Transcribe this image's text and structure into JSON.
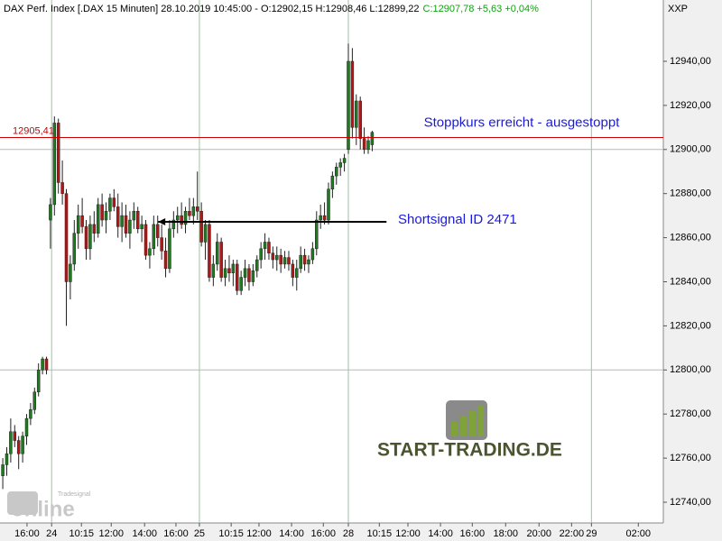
{
  "header": {
    "info": "DAX Perf. Index [.DAX  15 Minuten] 28.10.2019 10:45:00 - O:12902,15 H:12908,46 L:12899,22",
    "change": "C:12907,78 +5,63 +0,04%",
    "symbol": "XXP"
  },
  "branding": {
    "logo": "START-TRADING.DE",
    "watermark_small": "Tradesignal",
    "watermark": "online"
  },
  "chart_data": {
    "type": "candlestick",
    "up_color": "#1f7a1f",
    "down_color": "#b01818",
    "x": [
      0,
      1,
      2,
      3,
      4,
      5,
      6,
      7,
      8,
      9,
      10,
      11,
      12,
      13,
      14,
      15,
      16,
      17,
      18,
      19,
      20,
      21,
      22,
      23,
      24,
      25,
      26,
      27,
      28,
      29,
      30,
      31,
      32,
      33,
      34,
      35,
      36,
      37,
      38,
      39,
      40,
      41,
      42,
      43,
      44,
      45,
      46,
      47,
      48,
      49,
      50,
      51,
      52,
      53,
      54,
      55,
      56,
      57,
      58,
      59,
      60,
      61,
      62,
      63,
      64,
      65,
      66,
      67,
      68,
      69,
      70,
      71,
      72,
      73,
      74,
      75,
      76,
      77,
      78,
      79,
      80,
      81,
      82,
      83,
      84,
      85,
      86,
      87,
      88,
      89,
      90,
      91,
      92,
      93
    ],
    "open": [
      12752,
      12757,
      12762,
      12772,
      12768,
      12762,
      12770,
      12778,
      12782,
      12790,
      12800,
      12805,
      12868,
      12875,
      12912,
      12885,
      12880,
      12840,
      12848,
      12862,
      12870,
      12865,
      12855,
      12866,
      12862,
      12875,
      12868,
      12872,
      12878,
      12874,
      12865,
      12870,
      12862,
      12868,
      12872,
      12864,
      12866,
      12852,
      12855,
      12866,
      12860,
      12854,
      12846,
      12864,
      12868,
      12870,
      12866,
      12872,
      12870,
      12874,
      12872,
      12858,
      12866,
      12842,
      12848,
      12858,
      12842,
      12846,
      12844,
      12848,
      12836,
      12842,
      12846,
      12840,
      12845,
      12850,
      12855,
      12858,
      12853,
      12850,
      12852,
      12848,
      12851,
      12848,
      12842,
      12846,
      12852,
      12848,
      12850,
      12855,
      12868,
      12870,
      12868,
      12882,
      12888,
      12892,
      12894,
      12900,
      12940,
      12910,
      12922,
      12905,
      12900,
      12902.15
    ],
    "high": [
      12760,
      12765,
      12778,
      12775,
      12770,
      12772,
      12780,
      12785,
      12792,
      12803,
      12806,
      12806,
      12878,
      12915,
      12914,
      12895,
      12882,
      12852,
      12868,
      12875,
      12878,
      12868,
      12870,
      12872,
      12878,
      12880,
      12876,
      12880,
      12882,
      12880,
      12876,
      12875,
      12872,
      12876,
      12874,
      12870,
      12868,
      12858,
      12870,
      12870,
      12866,
      12860,
      12868,
      12872,
      12874,
      12876,
      12874,
      12878,
      12878,
      12890,
      12876,
      12868,
      12868,
      12852,
      12862,
      12860,
      12850,
      12852,
      12850,
      12850,
      12845,
      12850,
      12848,
      12848,
      12852,
      12858,
      12862,
      12860,
      12856,
      12856,
      12855,
      12854,
      12854,
      12850,
      12850,
      12856,
      12855,
      12852,
      12858,
      12872,
      12875,
      12876,
      12885,
      12890,
      12894,
      12896,
      12898,
      12948,
      12946,
      12925,
      12924,
      12910,
      12906,
      12908.46
    ],
    "low": [
      12746,
      12752,
      12758,
      12765,
      12755,
      12758,
      12766,
      12775,
      12780,
      12788,
      12798,
      12798,
      12855,
      12870,
      12880,
      12875,
      12820,
      12832,
      12845,
      12855,
      12862,
      12850,
      12850,
      12858,
      12860,
      12865,
      12862,
      12868,
      12872,
      12860,
      12858,
      12860,
      12855,
      12864,
      12862,
      12858,
      12850,
      12846,
      12852,
      12856,
      12850,
      12842,
      12844,
      12860,
      12862,
      12864,
      12862,
      12868,
      12866,
      12868,
      12856,
      12850,
      12840,
      12838,
      12845,
      12840,
      12838,
      12840,
      12838,
      12834,
      12834,
      12838,
      12836,
      12838,
      12842,
      12846,
      12850,
      12850,
      12846,
      12845,
      12844,
      12846,
      12845,
      12838,
      12836,
      12844,
      12845,
      12844,
      12848,
      12852,
      12864,
      12866,
      12866,
      12878,
      12884,
      12888,
      12890,
      12898,
      12905,
      12902,
      12900,
      12898,
      12898,
      12899.22
    ],
    "close": [
      12757,
      12762,
      12772,
      12768,
      12762,
      12770,
      12778,
      12782,
      12790,
      12800,
      12805,
      12800,
      12875,
      12912,
      12885,
      12880,
      12840,
      12848,
      12862,
      12870,
      12865,
      12855,
      12866,
      12862,
      12875,
      12868,
      12872,
      12878,
      12874,
      12865,
      12870,
      12862,
      12868,
      12872,
      12864,
      12866,
      12852,
      12855,
      12866,
      12860,
      12854,
      12846,
      12864,
      12868,
      12870,
      12866,
      12872,
      12870,
      12874,
      12872,
      12858,
      12866,
      12842,
      12848,
      12858,
      12842,
      12846,
      12844,
      12848,
      12836,
      12842,
      12846,
      12840,
      12845,
      12850,
      12855,
      12858,
      12853,
      12850,
      12852,
      12848,
      12851,
      12848,
      12842,
      12846,
      12852,
      12848,
      12850,
      12855,
      12868,
      12870,
      12868,
      12882,
      12888,
      12892,
      12894,
      12896,
      12940,
      12910,
      12922,
      12905,
      12900,
      12904,
      12907.78
    ],
    "xlim": [
      -0.7,
      166.3
    ],
    "xticks": [
      {
        "value": 6.1,
        "label": "16:00"
      },
      {
        "value": 12.3,
        "label": "24"
      },
      {
        "value": 19.8,
        "label": "10:15"
      },
      {
        "value": 27.3,
        "label": "12:00"
      },
      {
        "value": 35.7,
        "label": "14:00"
      },
      {
        "value": 43.6,
        "label": "16:00"
      },
      {
        "value": 49.5,
        "label": "25"
      },
      {
        "value": 57.5,
        "label": "10:15"
      },
      {
        "value": 64.5,
        "label": "12:00"
      },
      {
        "value": 72.7,
        "label": "14:00"
      },
      {
        "value": 80.7,
        "label": "16:00"
      },
      {
        "value": 87.0,
        "label": "28"
      },
      {
        "value": 94.8,
        "label": "10:15"
      },
      {
        "value": 102.0,
        "label": "12:00"
      },
      {
        "value": 110.2,
        "label": "14:00"
      },
      {
        "value": 118.2,
        "label": "16:00"
      },
      {
        "value": 126.6,
        "label": "18:00"
      },
      {
        "value": 135.0,
        "label": "20:00"
      },
      {
        "value": 143.2,
        "label": "22:00"
      },
      {
        "value": 148.2,
        "label": "29"
      },
      {
        "value": 160.0,
        "label": "02:00"
      }
    ],
    "xgrid": [
      12.3,
      49.5,
      87.0,
      148.2
    ],
    "ylim": [
      12730.6,
      12967.8
    ],
    "yticks": [
      {
        "value": 12740,
        "label": "12740,00"
      },
      {
        "value": 12760,
        "label": "12760,00"
      },
      {
        "value": 12780,
        "label": "12780,00"
      },
      {
        "value": 12800,
        "label": "12800,00"
      },
      {
        "value": 12820,
        "label": "12820,00"
      },
      {
        "value": 12840,
        "label": "12840,00"
      },
      {
        "value": 12860,
        "label": "12860,00"
      },
      {
        "value": 12880,
        "label": "12880,00"
      },
      {
        "value": 12900,
        "label": "12900,00"
      },
      {
        "value": 12920,
        "label": "12920,00"
      },
      {
        "value": 12940,
        "label": "12940,00"
      }
    ],
    "ygrid": [
      12800,
      12900
    ],
    "reference_line": {
      "value": 12905.41,
      "label": "12905,41",
      "color": "#cc0000"
    },
    "arrow": {
      "x": [
        39.1,
        96.6
      ],
      "y": 12867.2,
      "color": "#000000"
    },
    "annotations": [
      {
        "text": "Stoppkurs erreicht - ausgestoppt",
        "x": 106,
        "y": 12912,
        "color": "#1a1adc"
      },
      {
        "text": "Shortsignal ID 2471",
        "x": 99.5,
        "y": 12868,
        "color": "#1a1adc"
      }
    ]
  }
}
